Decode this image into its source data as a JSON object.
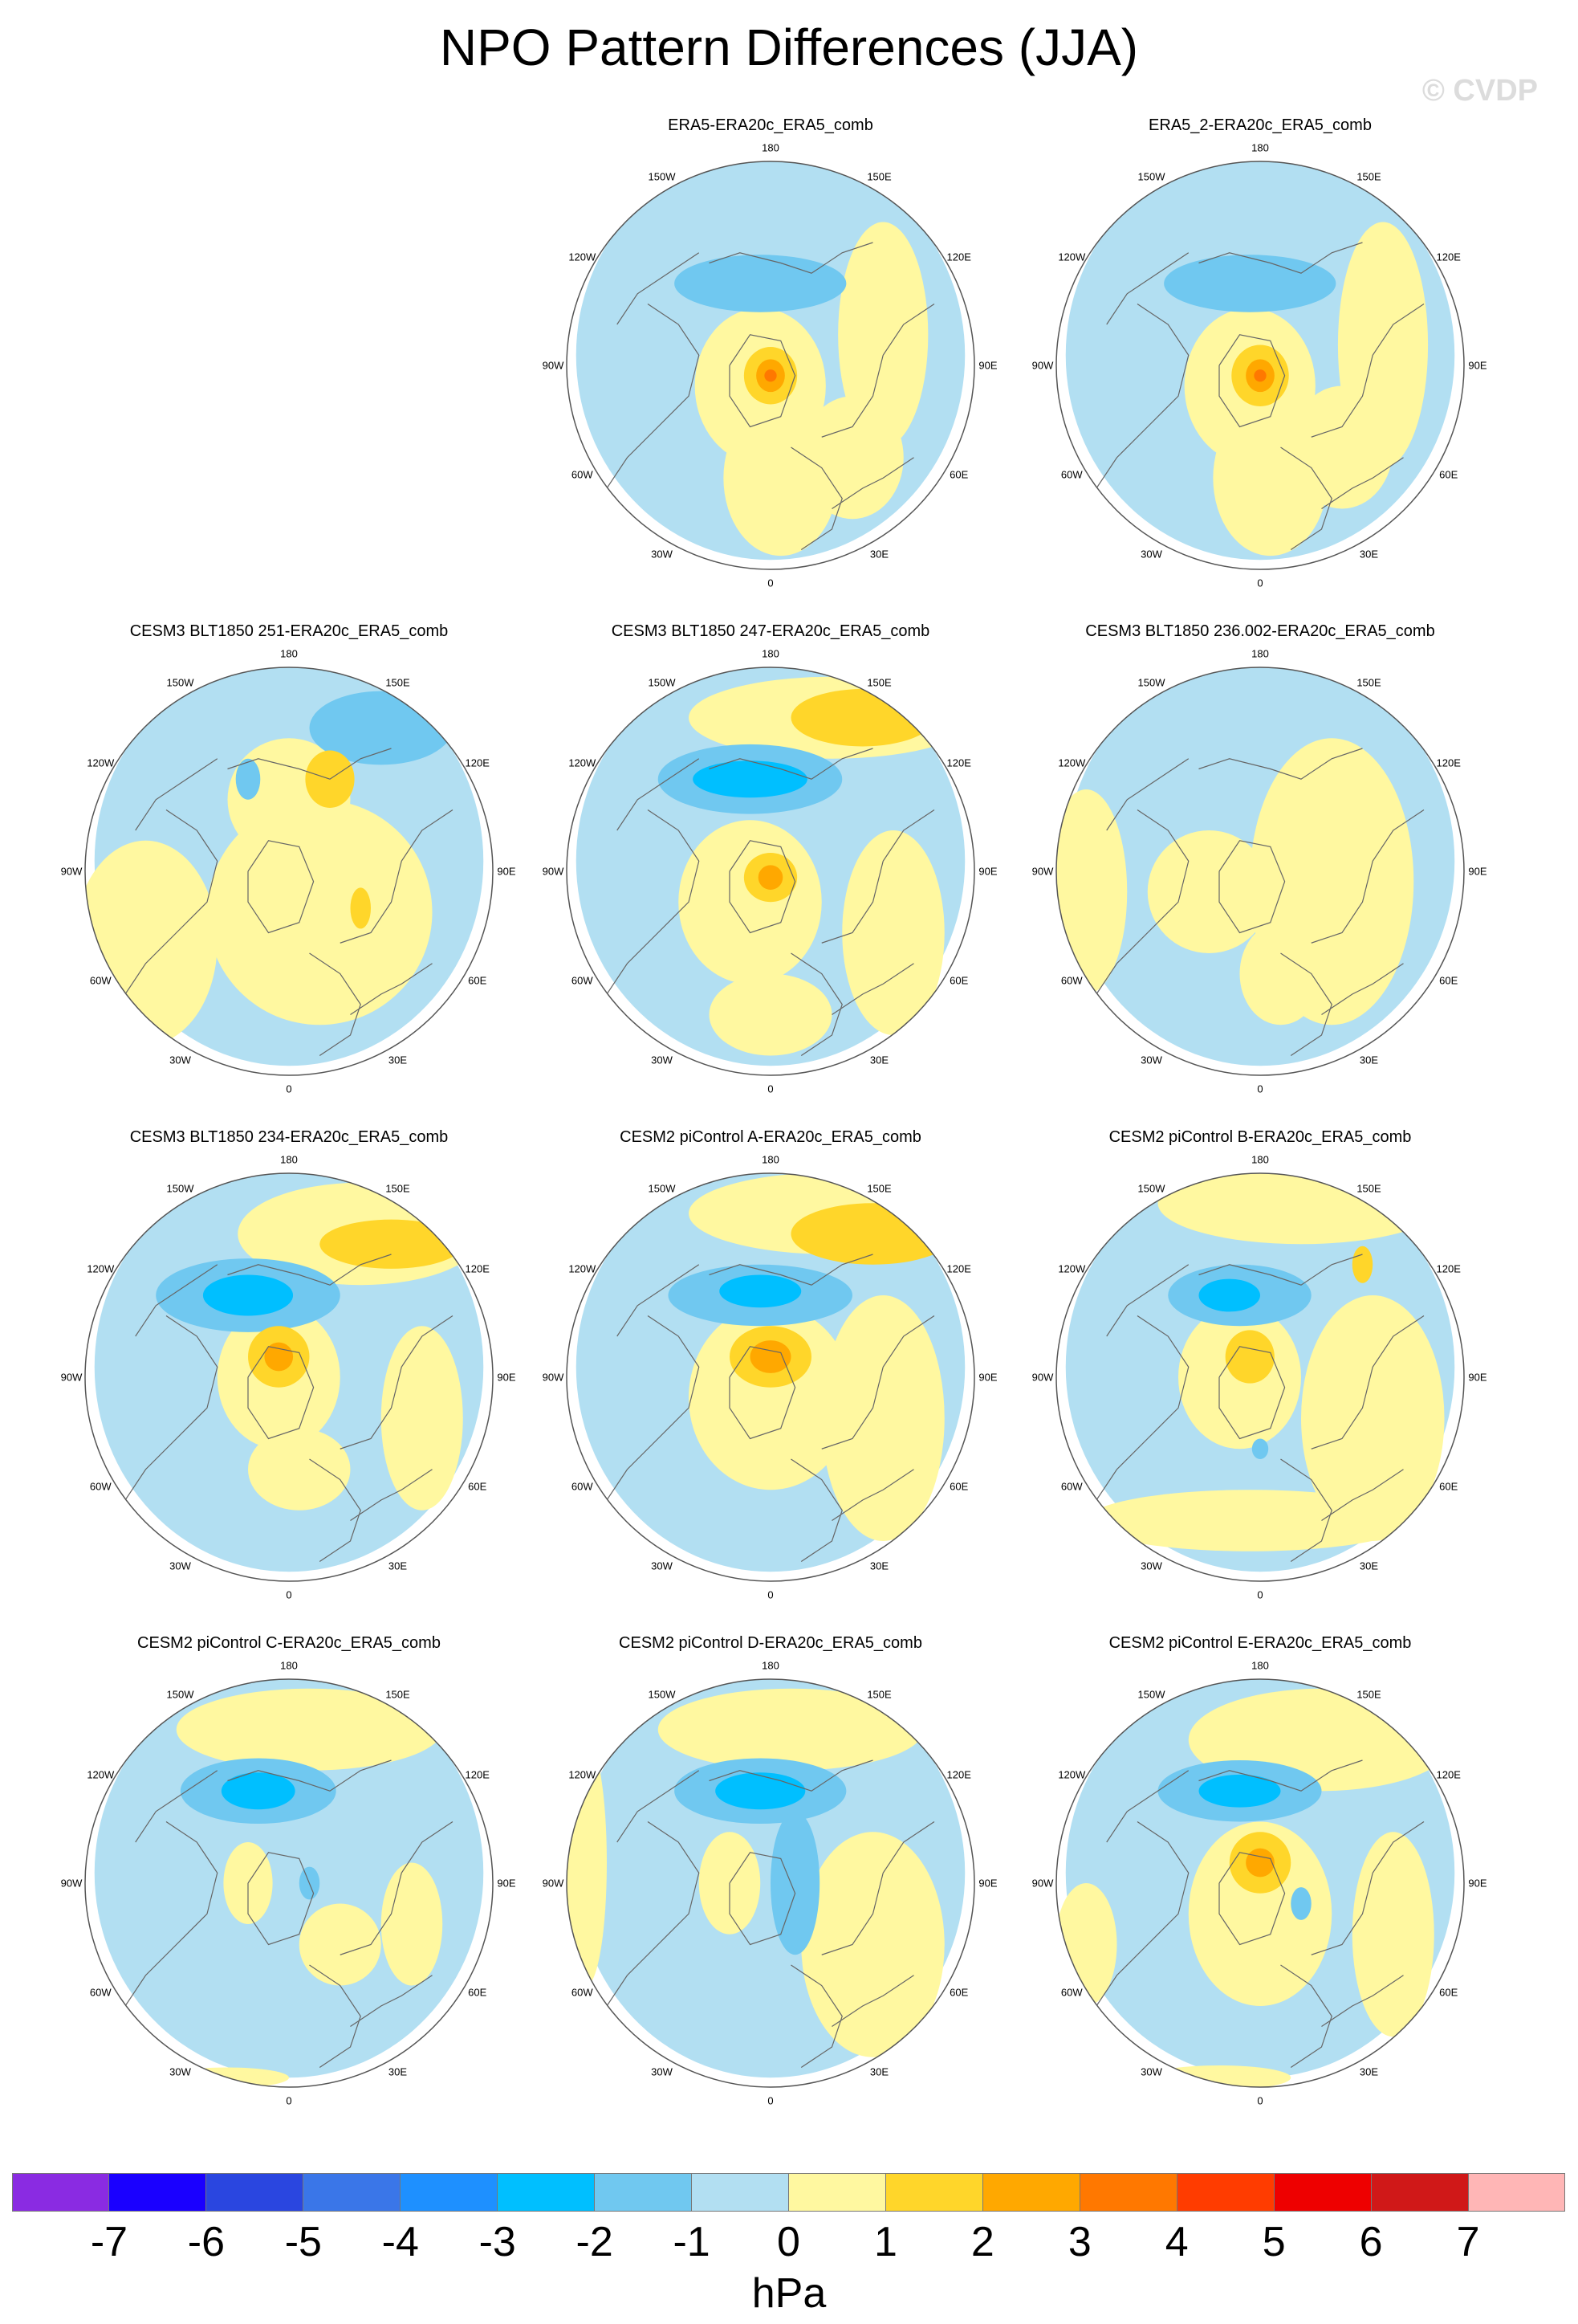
{
  "title": "NPO Pattern Differences (JJA)",
  "watermark": "© CVDP",
  "lon_labels": [
    "180",
    "150E",
    "120E",
    "90E",
    "60E",
    "30E",
    "0",
    "30W",
    "60W",
    "90W",
    "120W",
    "150W"
  ],
  "panels": [
    {
      "title": "ERA5-ERA20c_ERA5_comb",
      "row": 0,
      "col": 1,
      "blobs": [
        [
          "neg1",
          0.0,
          -0.05,
          0.95,
          1.0
        ],
        [
          "pos1",
          -0.05,
          0.1,
          0.32,
          0.38
        ],
        [
          "pos1",
          0.05,
          0.55,
          0.28,
          0.38
        ],
        [
          "pos1",
          0.55,
          -0.15,
          0.22,
          0.55
        ],
        [
          "pos1",
          0.4,
          0.45,
          0.25,
          0.3
        ],
        [
          "neg2",
          -0.05,
          -0.4,
          0.42,
          0.14
        ],
        [
          "pos2",
          0.0,
          0.05,
          0.13,
          0.14
        ],
        [
          "pos3",
          0.0,
          0.05,
          0.07,
          0.08
        ],
        [
          "pos4",
          0.0,
          0.05,
          0.03,
          0.03
        ]
      ]
    },
    {
      "title": "ERA5_2-ERA20c_ERA5_comb",
      "row": 0,
      "col": 2,
      "blobs": [
        [
          "neg1",
          0.0,
          -0.05,
          0.95,
          1.0
        ],
        [
          "pos1",
          -0.05,
          0.1,
          0.32,
          0.38
        ],
        [
          "pos1",
          0.05,
          0.55,
          0.28,
          0.38
        ],
        [
          "pos1",
          0.6,
          -0.1,
          0.22,
          0.6
        ],
        [
          "pos1",
          0.4,
          0.4,
          0.25,
          0.3
        ],
        [
          "neg2",
          -0.05,
          -0.4,
          0.42,
          0.14
        ],
        [
          "pos2",
          0.0,
          0.05,
          0.14,
          0.15
        ],
        [
          "pos3",
          0.0,
          0.05,
          0.07,
          0.08
        ],
        [
          "pos4",
          0.0,
          0.05,
          0.03,
          0.03
        ]
      ]
    },
    {
      "title": "CESM3 BLT1850 251-ERA20c_ERA5_comb",
      "row": 1,
      "col": 0,
      "blobs": [
        [
          "neg1",
          0.0,
          -0.05,
          0.95,
          1.0
        ],
        [
          "pos1",
          0.15,
          0.2,
          0.55,
          0.55
        ],
        [
          "pos1",
          -0.7,
          0.35,
          0.35,
          0.5
        ],
        [
          "pos1",
          0.0,
          -0.35,
          0.3,
          0.3
        ],
        [
          "neg2",
          0.45,
          -0.7,
          0.35,
          0.18
        ],
        [
          "neg2",
          -0.2,
          -0.45,
          0.06,
          0.1
        ],
        [
          "pos2",
          0.2,
          -0.45,
          0.12,
          0.14
        ],
        [
          "pos2",
          0.35,
          0.18,
          0.05,
          0.1
        ]
      ]
    },
    {
      "title": "CESM3 BLT1850 247-ERA20c_ERA5_comb",
      "row": 1,
      "col": 1,
      "blobs": [
        [
          "neg1",
          0.0,
          -0.05,
          0.95,
          1.0
        ],
        [
          "pos1",
          0.3,
          -0.75,
          0.7,
          0.2
        ],
        [
          "pos1",
          -0.1,
          0.15,
          0.35,
          0.4
        ],
        [
          "pos1",
          0.6,
          0.3,
          0.25,
          0.5
        ],
        [
          "pos1",
          0.0,
          0.7,
          0.3,
          0.2
        ],
        [
          "pos2",
          0.45,
          -0.75,
          0.35,
          0.14
        ],
        [
          "neg2",
          -0.1,
          -0.45,
          0.45,
          0.17
        ],
        [
          "neg3",
          -0.1,
          -0.45,
          0.28,
          0.09
        ],
        [
          "pos2",
          0.0,
          0.03,
          0.13,
          0.12
        ],
        [
          "pos3",
          0.0,
          0.03,
          0.06,
          0.06
        ]
      ]
    },
    {
      "title": "CESM3 BLT1850 236.002-ERA20c_ERA5_comb",
      "row": 1,
      "col": 2,
      "blobs": [
        [
          "neg1",
          0.0,
          -0.05,
          0.95,
          1.0
        ],
        [
          "pos1",
          0.35,
          0.05,
          0.4,
          0.7
        ],
        [
          "pos1",
          -0.25,
          0.1,
          0.3,
          0.3
        ],
        [
          "pos1",
          -0.85,
          0.1,
          0.2,
          0.5
        ],
        [
          "pos1",
          0.1,
          0.5,
          0.2,
          0.25
        ]
      ]
    },
    {
      "title": "CESM3 BLT1850 234-ERA20c_ERA5_comb",
      "row": 2,
      "col": 0,
      "blobs": [
        [
          "neg1",
          0.0,
          -0.05,
          0.95,
          1.0
        ],
        [
          "pos1",
          0.35,
          -0.7,
          0.6,
          0.25
        ],
        [
          "pos1",
          -0.05,
          0.0,
          0.3,
          0.35
        ],
        [
          "pos1",
          0.65,
          0.2,
          0.2,
          0.45
        ],
        [
          "pos1",
          0.05,
          0.45,
          0.25,
          0.2
        ],
        [
          "pos2",
          0.5,
          -0.65,
          0.35,
          0.12
        ],
        [
          "neg2",
          -0.2,
          -0.4,
          0.45,
          0.18
        ],
        [
          "neg3",
          -0.2,
          -0.4,
          0.22,
          0.1
        ],
        [
          "pos2",
          -0.05,
          -0.1,
          0.15,
          0.15
        ],
        [
          "pos3",
          -0.05,
          -0.1,
          0.07,
          0.07
        ]
      ]
    },
    {
      "title": "CESM2 piControl A-ERA20c_ERA5_comb",
      "row": 2,
      "col": 1,
      "blobs": [
        [
          "neg1",
          0.0,
          -0.05,
          0.95,
          1.0
        ],
        [
          "pos1",
          0.3,
          -0.8,
          0.7,
          0.2
        ],
        [
          "pos1",
          0.0,
          0.1,
          0.4,
          0.45
        ],
        [
          "pos1",
          0.55,
          0.2,
          0.3,
          0.6
        ],
        [
          "pos2",
          0.5,
          -0.7,
          0.4,
          0.15
        ],
        [
          "neg2",
          -0.05,
          -0.4,
          0.45,
          0.15
        ],
        [
          "neg3",
          -0.05,
          -0.42,
          0.2,
          0.08
        ],
        [
          "pos2",
          0.0,
          -0.1,
          0.2,
          0.15
        ],
        [
          "pos3",
          0.0,
          -0.1,
          0.1,
          0.08
        ]
      ]
    },
    {
      "title": "CESM2 piControl B-ERA20c_ERA5_comb",
      "row": 2,
      "col": 2,
      "blobs": [
        [
          "neg1",
          0.0,
          -0.05,
          0.95,
          1.0
        ],
        [
          "pos1",
          0.2,
          -0.85,
          0.7,
          0.2
        ],
        [
          "pos1",
          0.55,
          0.2,
          0.35,
          0.6
        ],
        [
          "pos1",
          -0.1,
          0.0,
          0.3,
          0.35
        ],
        [
          "pos1",
          -0.05,
          0.7,
          0.8,
          0.15
        ],
        [
          "pos2",
          0.5,
          -0.55,
          0.05,
          0.09
        ],
        [
          "neg2",
          -0.1,
          -0.4,
          0.35,
          0.15
        ],
        [
          "neg3",
          -0.15,
          -0.4,
          0.15,
          0.08
        ],
        [
          "pos2",
          -0.05,
          -0.1,
          0.12,
          0.13
        ],
        [
          "neg2",
          0.0,
          0.35,
          0.04,
          0.05
        ]
      ]
    },
    {
      "title": "CESM2 piControl C-ERA20c_ERA5_comb",
      "row": 3,
      "col": 0,
      "blobs": [
        [
          "neg1",
          0.0,
          -0.05,
          0.95,
          1.0
        ],
        [
          "pos1",
          0.1,
          -0.75,
          0.65,
          0.2
        ],
        [
          "pos1",
          -0.2,
          0.0,
          0.12,
          0.2
        ],
        [
          "pos1",
          0.25,
          0.3,
          0.2,
          0.2
        ],
        [
          "pos1",
          -0.3,
          0.95,
          0.3,
          0.05
        ],
        [
          "pos1",
          0.6,
          0.2,
          0.15,
          0.3
        ],
        [
          "neg2",
          -0.15,
          -0.45,
          0.38,
          0.16
        ],
        [
          "neg3",
          -0.15,
          -0.45,
          0.18,
          0.09
        ],
        [
          "neg2",
          0.1,
          0.0,
          0.05,
          0.08
        ]
      ]
    },
    {
      "title": "CESM2 piControl D-ERA20c_ERA5_comb",
      "row": 3,
      "col": 1,
      "blobs": [
        [
          "neg1",
          0.0,
          -0.05,
          0.95,
          1.0
        ],
        [
          "pos1",
          0.1,
          -0.75,
          0.65,
          0.2
        ],
        [
          "pos1",
          0.5,
          0.3,
          0.35,
          0.55
        ],
        [
          "pos1",
          -0.2,
          0.0,
          0.15,
          0.25
        ],
        [
          "pos1",
          -0.9,
          -0.1,
          0.1,
          0.6
        ],
        [
          "neg2",
          -0.05,
          -0.45,
          0.42,
          0.16
        ],
        [
          "neg3",
          -0.05,
          -0.45,
          0.22,
          0.09
        ],
        [
          "neg2",
          0.12,
          0.0,
          0.12,
          0.35
        ]
      ]
    },
    {
      "title": "CESM2 piControl E-ERA20c_ERA5_comb",
      "row": 3,
      "col": 2,
      "blobs": [
        [
          "neg1",
          0.0,
          -0.05,
          0.95,
          1.0
        ],
        [
          "pos1",
          0.3,
          -0.7,
          0.65,
          0.25
        ],
        [
          "pos1",
          0.0,
          0.15,
          0.35,
          0.45
        ],
        [
          "pos1",
          0.65,
          0.25,
          0.2,
          0.5
        ],
        [
          "pos1",
          -0.85,
          0.3,
          0.15,
          0.3
        ],
        [
          "pos1",
          -0.2,
          0.95,
          0.35,
          0.06
        ],
        [
          "neg2",
          -0.1,
          -0.45,
          0.4,
          0.15
        ],
        [
          "neg3",
          -0.1,
          -0.45,
          0.2,
          0.08
        ],
        [
          "pos2",
          0.0,
          -0.1,
          0.15,
          0.15
        ],
        [
          "pos3",
          0.0,
          -0.1,
          0.07,
          0.07
        ],
        [
          "neg2",
          0.2,
          0.1,
          0.05,
          0.08
        ]
      ]
    }
  ],
  "colorbar": {
    "colors": [
      "#8a2be2",
      "#1a00ff",
      "#2a46e0",
      "#3a76e8",
      "#1e90ff",
      "#00bfff",
      "#70c8f0",
      "#b2dff2",
      "#fff8a0",
      "#ffd62a",
      "#ffa800",
      "#ff7800",
      "#ff3c00",
      "#ee0000",
      "#d01818",
      "#ffb6b6"
    ],
    "labels": [
      "-7",
      "-6",
      "-5",
      "-4",
      "-3",
      "-2",
      "-1",
      "0",
      "1",
      "2",
      "3",
      "4",
      "5",
      "6",
      "7"
    ],
    "unit": "hPa"
  },
  "palette": {
    "neg3": "#00bfff",
    "neg2": "#70c8f0",
    "neg1": "#b2dff2",
    "pos1": "#fff8a0",
    "pos2": "#ffd62a",
    "pos3": "#ffa800",
    "pos4": "#ff7800",
    "land_outline": "#666666",
    "border": "#555555"
  }
}
